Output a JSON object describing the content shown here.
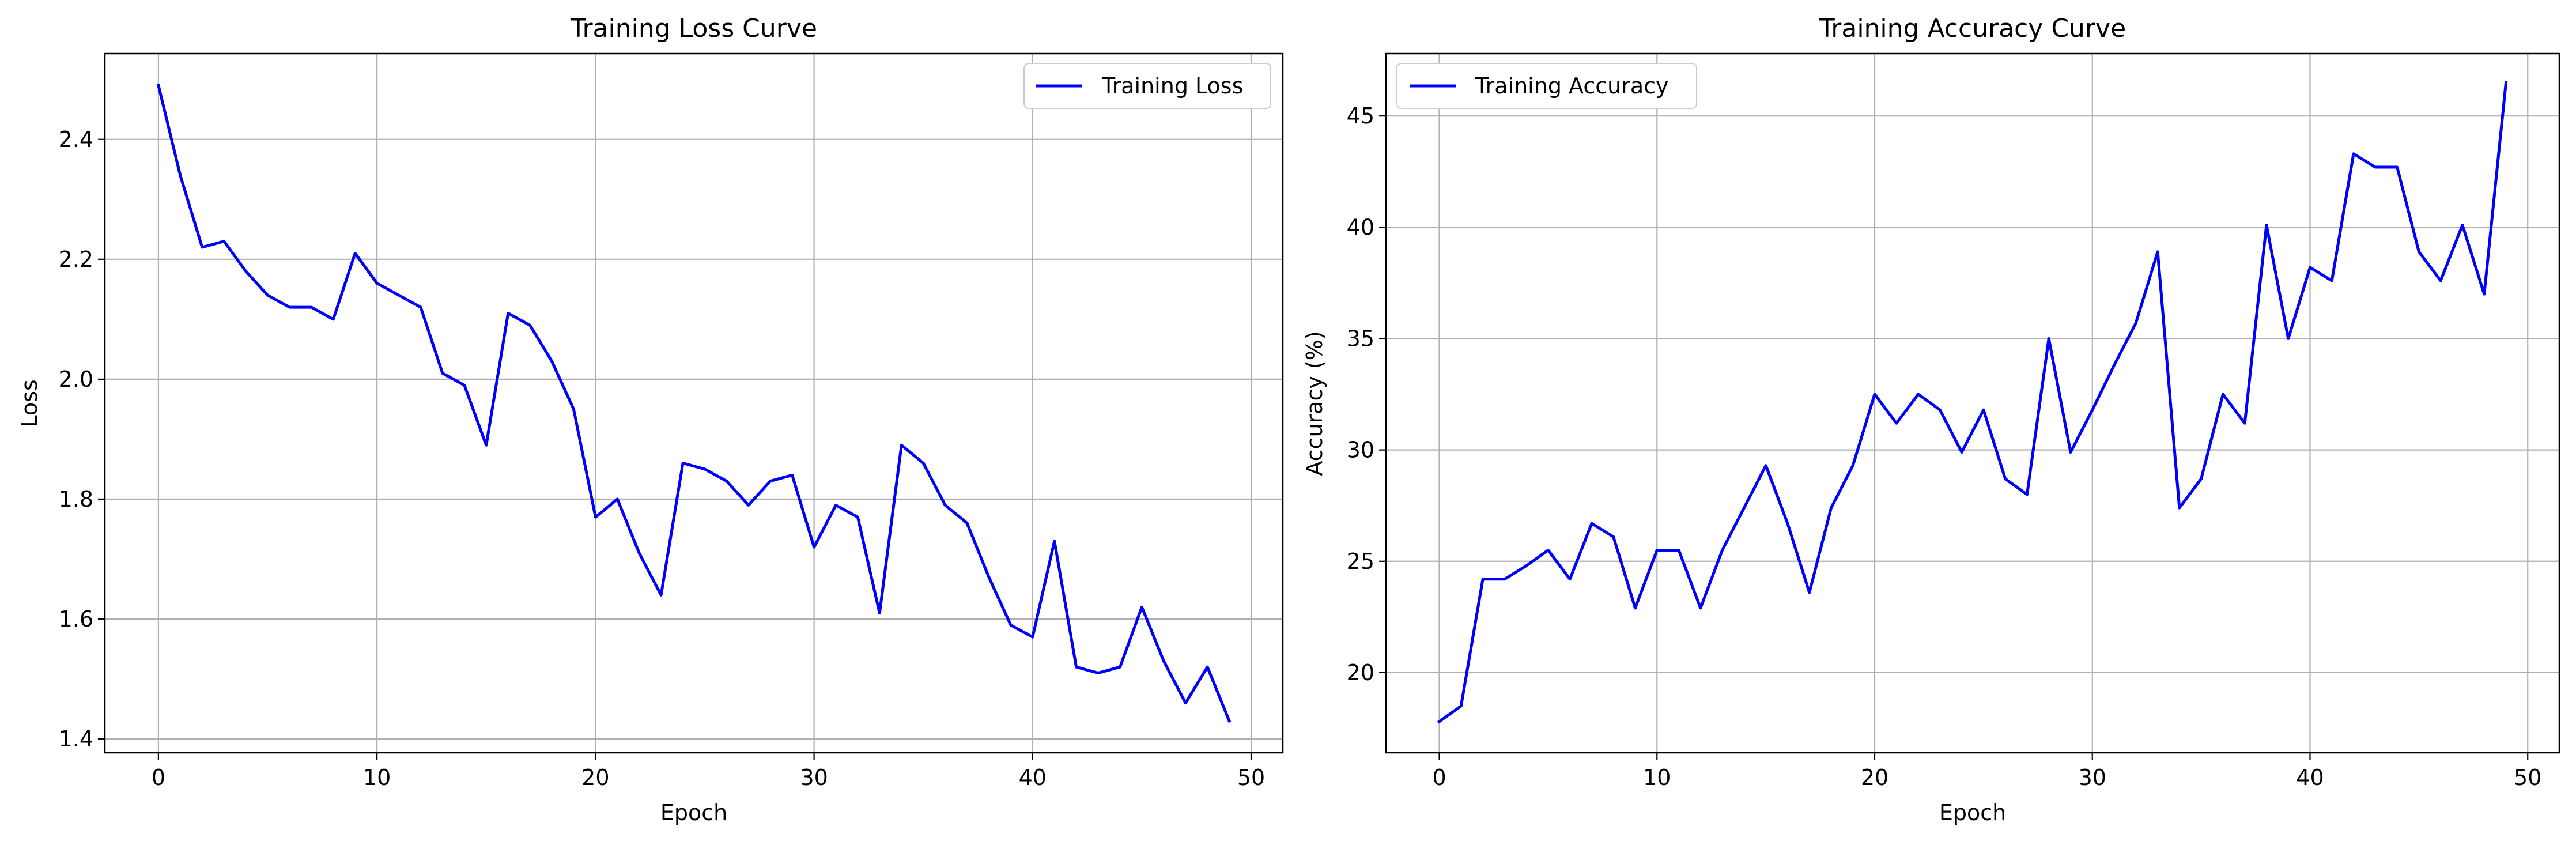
{
  "chart_data": [
    {
      "type": "line",
      "title": "Training Loss Curve",
      "xlabel": "Epoch",
      "ylabel": "Loss",
      "xlim": [
        -2.45,
        51.45
      ],
      "ylim": [
        1.377,
        2.543
      ],
      "xticks": [
        0,
        10,
        20,
        30,
        40,
        50
      ],
      "yticks": [
        1.4,
        1.6,
        1.8,
        2.0,
        2.2,
        2.4
      ],
      "xtick_labels": [
        "0",
        "10",
        "20",
        "30",
        "40",
        "50"
      ],
      "ytick_labels": [
        "1.4",
        "1.6",
        "1.8",
        "2.0",
        "2.2",
        "2.4"
      ],
      "grid": true,
      "legend": "upper-right",
      "series": [
        {
          "name": "Training Loss",
          "color": "#0000ff",
          "x": [
            0,
            1,
            2,
            3,
            4,
            5,
            6,
            7,
            8,
            9,
            10,
            11,
            12,
            13,
            14,
            15,
            16,
            17,
            18,
            19,
            20,
            21,
            22,
            23,
            24,
            25,
            26,
            27,
            28,
            29,
            30,
            31,
            32,
            33,
            34,
            35,
            36,
            37,
            38,
            39,
            40,
            41,
            42,
            43,
            44,
            45,
            46,
            47,
            48,
            49
          ],
          "y": [
            2.49,
            2.34,
            2.22,
            2.23,
            2.18,
            2.14,
            2.12,
            2.12,
            2.1,
            2.21,
            2.16,
            2.14,
            2.12,
            2.01,
            1.99,
            1.89,
            2.11,
            2.09,
            2.03,
            1.95,
            1.77,
            1.8,
            1.71,
            1.64,
            1.86,
            1.85,
            1.83,
            1.79,
            1.83,
            1.84,
            1.72,
            1.79,
            1.77,
            1.61,
            1.89,
            1.86,
            1.79,
            1.76,
            1.67,
            1.59,
            1.57,
            1.73,
            1.52,
            1.51,
            1.52,
            1.62,
            1.53,
            1.46,
            1.52,
            1.43
          ]
        }
      ]
    },
    {
      "type": "line",
      "title": "Training Accuracy Curve",
      "xlabel": "Epoch",
      "ylabel": "Accuracy (%)",
      "xlim": [
        -2.45,
        51.45
      ],
      "ylim": [
        16.4,
        47.8
      ],
      "xticks": [
        0,
        10,
        20,
        30,
        40,
        50
      ],
      "yticks": [
        20,
        25,
        30,
        35,
        40,
        45
      ],
      "xtick_labels": [
        "0",
        "10",
        "20",
        "30",
        "40",
        "50"
      ],
      "ytick_labels": [
        "20",
        "25",
        "30",
        "35",
        "40",
        "45"
      ],
      "grid": true,
      "legend": "upper-left",
      "series": [
        {
          "name": "Training Accuracy",
          "color": "#0000ff",
          "x": [
            0,
            1,
            2,
            3,
            4,
            5,
            6,
            7,
            8,
            9,
            10,
            11,
            12,
            13,
            14,
            15,
            16,
            17,
            18,
            19,
            20,
            21,
            22,
            23,
            24,
            25,
            26,
            27,
            28,
            29,
            30,
            31,
            32,
            33,
            34,
            35,
            36,
            37,
            38,
            39,
            40,
            41,
            42,
            43,
            44,
            45,
            46,
            47,
            48,
            49
          ],
          "y": [
            17.8,
            18.5,
            24.2,
            24.2,
            24.8,
            25.5,
            24.2,
            26.7,
            26.1,
            22.9,
            25.5,
            25.5,
            22.9,
            25.5,
            27.4,
            29.3,
            26.7,
            23.6,
            27.4,
            29.3,
            32.5,
            31.2,
            32.5,
            31.8,
            29.9,
            31.8,
            28.7,
            28.0,
            35.0,
            29.9,
            31.8,
            33.8,
            35.7,
            38.9,
            27.4,
            28.7,
            32.5,
            31.2,
            40.1,
            35.0,
            38.2,
            37.6,
            43.3,
            42.7,
            42.7,
            38.9,
            37.6,
            40.1,
            37.0,
            46.5
          ]
        }
      ]
    }
  ]
}
